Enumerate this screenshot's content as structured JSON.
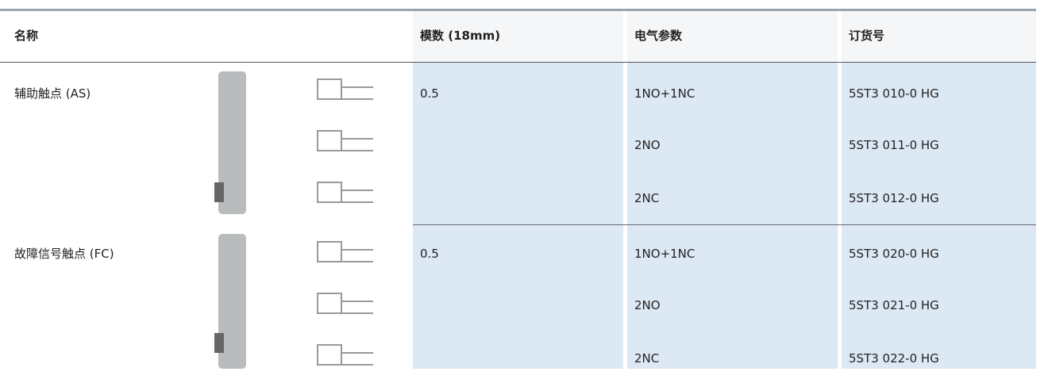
{
  "table": {
    "headers": [
      "名称",
      "模数 (18mm)",
      "电气参数",
      "订货号"
    ],
    "groups": [
      {
        "name": "辅助触点 (AS)",
        "modules": "0.5",
        "rows": [
          [
            "1NO+1NC",
            "5ST3 010-0 HG"
          ],
          [
            "2NO",
            "5ST3 011-0 HG"
          ],
          [
            "2NC",
            "5ST3 012-0 HG"
          ]
        ]
      },
      {
        "name": "故障信号触点 (FC)",
        "modules": "0.5",
        "rows": [
          [
            "1NO+1NC",
            "5ST3 020-0 HG"
          ],
          [
            "2NO",
            "5ST3 021-0 HG"
          ],
          [
            "2NC",
            "5ST3 022-0 HG"
          ]
        ]
      }
    ]
  }
}
